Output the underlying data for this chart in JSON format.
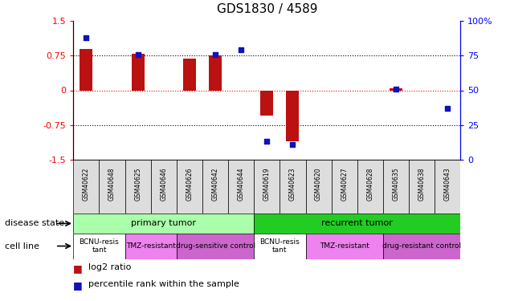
{
  "title": "GDS1830 / 4589",
  "samples": [
    "GSM40622",
    "GSM40648",
    "GSM40625",
    "GSM40646",
    "GSM40626",
    "GSM40642",
    "GSM40644",
    "GSM40619",
    "GSM40623",
    "GSM40620",
    "GSM40627",
    "GSM40628",
    "GSM40635",
    "GSM40638",
    "GSM40643"
  ],
  "log2_ratio": [
    0.9,
    0.0,
    0.8,
    0.0,
    0.68,
    0.75,
    0.0,
    -0.55,
    -1.1,
    0.0,
    0.0,
    0.0,
    0.05,
    0.0,
    0.0
  ],
  "percentile_rank": [
    88,
    0,
    76,
    0,
    0,
    76,
    79,
    13,
    11,
    0,
    0,
    0,
    51,
    0,
    37
  ],
  "ylim_left": [
    -1.5,
    1.5
  ],
  "ylim_right": [
    0,
    100
  ],
  "yticks_left": [
    -1.5,
    -0.75,
    0,
    0.75,
    1.5
  ],
  "yticks_right": [
    0,
    25,
    50,
    75,
    100
  ],
  "hline_dotted": [
    -0.75,
    0.75
  ],
  "hline_dashed_red": 0,
  "bar_color": "#bb1111",
  "dot_color": "#1111bb",
  "disease_state_groups": [
    {
      "label": "primary tumor",
      "start": 0,
      "end": 7,
      "color": "#aaffaa"
    },
    {
      "label": "recurrent tumor",
      "start": 7,
      "end": 15,
      "color": "#22cc22"
    }
  ],
  "cell_line_groups": [
    {
      "label": "BCNU-resis\ntant",
      "start": 0,
      "end": 2,
      "color": "#ffffff"
    },
    {
      "label": "TMZ-resistant",
      "start": 2,
      "end": 4,
      "color": "#ee82ee"
    },
    {
      "label": "drug-sensitive control",
      "start": 4,
      "end": 7,
      "color": "#cc66cc"
    },
    {
      "label": "BCNU-resis\ntant",
      "start": 7,
      "end": 9,
      "color": "#ffffff"
    },
    {
      "label": "TMZ-resistant",
      "start": 9,
      "end": 12,
      "color": "#ee82ee"
    },
    {
      "label": "drug-resistant control",
      "start": 12,
      "end": 15,
      "color": "#cc66cc"
    }
  ],
  "legend_items": [
    {
      "label": "log2 ratio",
      "color": "#bb1111"
    },
    {
      "label": "percentile rank within the sample",
      "color": "#1111bb"
    }
  ]
}
